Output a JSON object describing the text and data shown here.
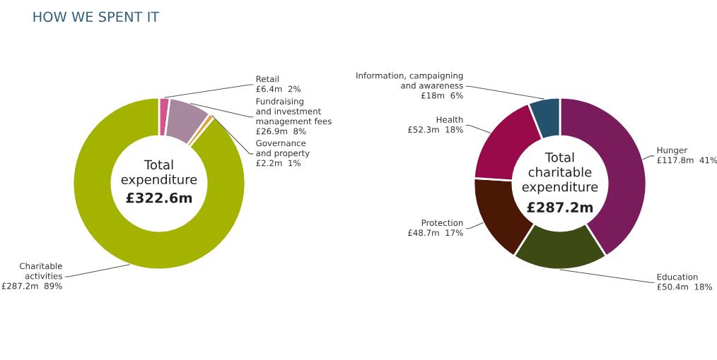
{
  "chart_data": [
    {
      "type": "donut",
      "title": "HOW WE SPENT IT",
      "categories": [
        "Retail",
        "Fundraising\nand investment\nmanagement fees",
        "Governance\nand property",
        "Charitable\nactivities"
      ],
      "values": [
        2,
        8,
        1,
        89
      ],
      "value_labels": [
        "£6.4m  2%",
        "£26.9m  8%",
        "£2.2m  1%",
        "£287.2m  89%"
      ],
      "colors": [
        "#d2568c",
        "#a8889f",
        "#e0a43a",
        "#a3b300"
      ],
      "annotations": [
        "Total\nexpenditure",
        "£322.6m"
      ]
    },
    {
      "type": "donut",
      "categories": [
        "Hunger",
        "Education",
        "Protection",
        "Health",
        "Information, campaigning\nand awareness"
      ],
      "values": [
        41,
        18,
        17,
        18,
        6
      ],
      "value_labels": [
        "£117.8m  41%",
        "£50.4m  18%",
        "£48.7m  17%",
        "£52.3m  18%",
        "£18m  6%"
      ],
      "colors": [
        "#7a1c5c",
        "#3e4a14",
        "#4a1804",
        "#990a4a",
        "#24526c"
      ],
      "annotations": [
        "Total\ncharitable\nexpenditure",
        "£287.2m"
      ]
    }
  ]
}
